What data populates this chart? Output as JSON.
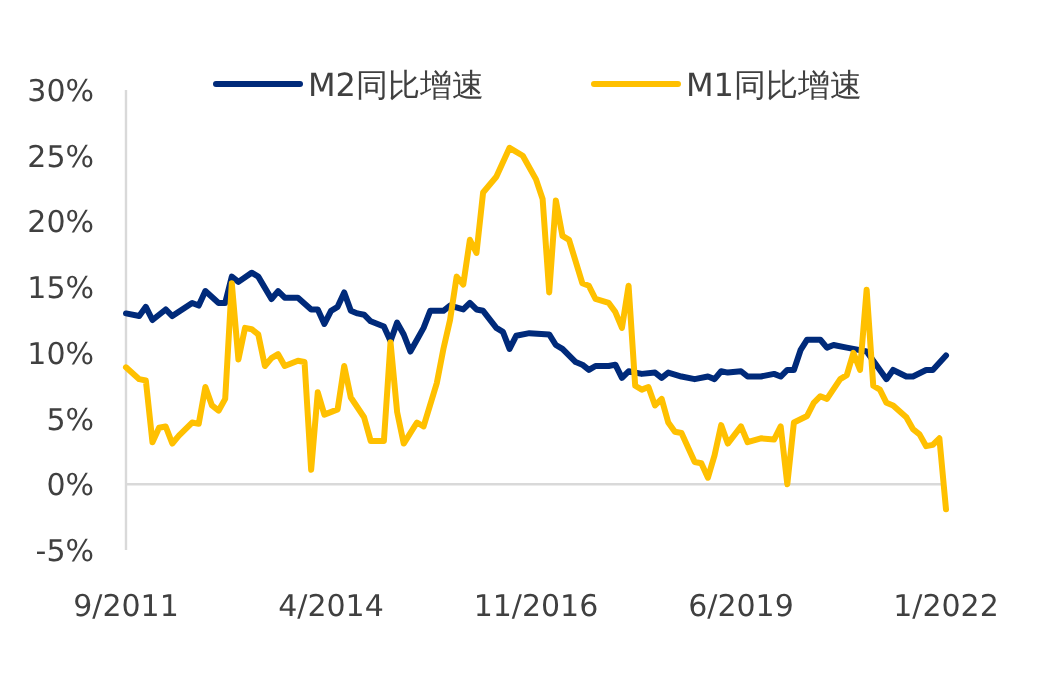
{
  "chart_data": {
    "type": "line",
    "legend": "top",
    "marker": "none",
    "line_style": "solid",
    "ref_lines": [
      {
        "axis": "y",
        "value": 0,
        "color": "#d9d9d9"
      }
    ],
    "xlim": [
      "2011-09",
      "2022-01"
    ],
    "xticks": [
      {
        "value": "2011-09",
        "label": "9/2011"
      },
      {
        "value": "2014-04",
        "label": "4/2014"
      },
      {
        "value": "2016-11",
        "label": "11/2016"
      },
      {
        "value": "2019-06",
        "label": "6/2019"
      },
      {
        "value": "2022-01",
        "label": "1/2022"
      }
    ],
    "ylim": [
      -5,
      30
    ],
    "yticks": [
      {
        "value": -5,
        "label": "-5%"
      },
      {
        "value": 0,
        "label": "0%"
      },
      {
        "value": 5,
        "label": "5%"
      },
      {
        "value": 10,
        "label": "10%"
      },
      {
        "value": 15,
        "label": "15%"
      },
      {
        "value": 20,
        "label": "20%"
      },
      {
        "value": 25,
        "label": "25%"
      },
      {
        "value": 30,
        "label": "30%"
      }
    ],
    "series": [
      {
        "name": "M2同比增速",
        "color": "#002a7a",
        "x": [
          "2011-09",
          "2011-11",
          "2011-12",
          "2012-01",
          "2012-03",
          "2012-04",
          "2012-07",
          "2012-08",
          "2012-09",
          "2012-11",
          "2012-12",
          "2013-01",
          "2013-02",
          "2013-04",
          "2013-05",
          "2013-07",
          "2013-08",
          "2013-09",
          "2013-11",
          "2014-01",
          "2014-02",
          "2014-03",
          "2014-04",
          "2014-05",
          "2014-06",
          "2014-07",
          "2014-08",
          "2014-09",
          "2014-10",
          "2014-12",
          "2015-01",
          "2015-02",
          "2015-03",
          "2015-04",
          "2015-05",
          "2015-06",
          "2015-07",
          "2015-09",
          "2015-10",
          "2015-12",
          "2016-01",
          "2016-02",
          "2016-03",
          "2016-05",
          "2016-06",
          "2016-07",
          "2016-08",
          "2016-10",
          "2017-01",
          "2017-02",
          "2017-03",
          "2017-05",
          "2017-06",
          "2017-07",
          "2017-08",
          "2017-10",
          "2017-11",
          "2017-12",
          "2018-01",
          "2018-03",
          "2018-05",
          "2018-06",
          "2018-07",
          "2018-09",
          "2018-11",
          "2019-01",
          "2019-02",
          "2019-03",
          "2019-04",
          "2019-06",
          "2019-07",
          "2019-09",
          "2019-11",
          "2019-12",
          "2020-01",
          "2020-02",
          "2020-03",
          "2020-04",
          "2020-06",
          "2020-07",
          "2020-08",
          "2020-10",
          "2020-11",
          "2021-01",
          "2021-02",
          "2021-04",
          "2021-05",
          "2021-07",
          "2021-08",
          "2021-10",
          "2021-11",
          "2022-01"
        ],
        "values": [
          13.0,
          12.8,
          13.5,
          12.5,
          13.3,
          12.8,
          13.8,
          13.6,
          14.7,
          13.8,
          13.8,
          15.8,
          15.4,
          16.1,
          15.8,
          14.1,
          14.7,
          14.2,
          14.2,
          13.3,
          13.3,
          12.2,
          13.2,
          13.5,
          14.6,
          13.2,
          13.0,
          12.9,
          12.4,
          12.0,
          10.9,
          12.3,
          11.4,
          10.1,
          11.0,
          11.9,
          13.2,
          13.2,
          13.6,
          13.3,
          13.8,
          13.3,
          13.2,
          11.9,
          11.6,
          10.3,
          11.3,
          11.5,
          11.4,
          10.6,
          10.3,
          9.3,
          9.1,
          8.7,
          9.0,
          9.0,
          9.1,
          8.1,
          8.6,
          8.4,
          8.5,
          8.1,
          8.5,
          8.2,
          8.0,
          8.2,
          8.0,
          8.6,
          8.5,
          8.6,
          8.2,
          8.2,
          8.4,
          8.2,
          8.7,
          8.7,
          10.2,
          11.0,
          11.0,
          10.4,
          10.6,
          10.4,
          10.3,
          10.1,
          9.4,
          8.0,
          8.7,
          8.2,
          8.2,
          8.7,
          8.7,
          9.8
        ]
      },
      {
        "name": "M1同比增速",
        "color": "#ffc000",
        "x": [
          "2011-09",
          "2011-11",
          "2011-12",
          "2012-01",
          "2012-02",
          "2012-03",
          "2012-04",
          "2012-05",
          "2012-07",
          "2012-08",
          "2012-09",
          "2012-10",
          "2012-11",
          "2012-12",
          "2013-01",
          "2013-02",
          "2013-03",
          "2013-04",
          "2013-05",
          "2013-06",
          "2013-07",
          "2013-08",
          "2013-09",
          "2013-11",
          "2013-12",
          "2014-01",
          "2014-02",
          "2014-03",
          "2014-05",
          "2014-06",
          "2014-07",
          "2014-09",
          "2014-10",
          "2014-12",
          "2015-01",
          "2015-02",
          "2015-03",
          "2015-05",
          "2015-06",
          "2015-08",
          "2015-09",
          "2015-10",
          "2015-11",
          "2015-12",
          "2016-01",
          "2016-02",
          "2016-03",
          "2016-05",
          "2016-07",
          "2016-09",
          "2016-11",
          "2016-12",
          "2017-01",
          "2017-02",
          "2017-03",
          "2017-04",
          "2017-06",
          "2017-07",
          "2017-08",
          "2017-10",
          "2017-11",
          "2017-12",
          "2018-01",
          "2018-02",
          "2018-03",
          "2018-04",
          "2018-05",
          "2018-06",
          "2018-07",
          "2018-08",
          "2018-09",
          "2018-11",
          "2018-12",
          "2019-01",
          "2019-02",
          "2019-03",
          "2019-04",
          "2019-06",
          "2019-07",
          "2019-09",
          "2019-11",
          "2019-12",
          "2020-01",
          "2020-02",
          "2020-04",
          "2020-05",
          "2020-06",
          "2020-07",
          "2020-09",
          "2020-10",
          "2020-11",
          "2020-12",
          "2021-01",
          "2021-02",
          "2021-03",
          "2021-04",
          "2021-05",
          "2021-07",
          "2021-08",
          "2021-09",
          "2021-10",
          "2021-11",
          "2021-12",
          "2022-01"
        ],
        "values": [
          8.9,
          8.0,
          7.9,
          3.2,
          4.3,
          4.4,
          3.1,
          3.7,
          4.7,
          4.6,
          7.4,
          6.0,
          5.6,
          6.5,
          15.3,
          9.5,
          11.9,
          11.8,
          11.4,
          9.0,
          9.6,
          9.9,
          9.0,
          9.4,
          9.3,
          1.1,
          7.0,
          5.3,
          5.7,
          9.0,
          6.6,
          5.1,
          3.3,
          3.3,
          10.8,
          5.5,
          3.1,
          4.7,
          4.4,
          7.7,
          10.3,
          12.5,
          15.8,
          15.2,
          18.6,
          17.6,
          22.2,
          23.4,
          25.6,
          25.0,
          23.2,
          21.7,
          14.6,
          21.6,
          18.9,
          18.6,
          15.3,
          15.1,
          14.1,
          13.8,
          13.1,
          11.9,
          15.1,
          7.5,
          7.2,
          7.4,
          6.0,
          6.5,
          4.7,
          4.0,
          3.9,
          1.7,
          1.6,
          0.5,
          2.2,
          4.5,
          3.1,
          4.4,
          3.2,
          3.5,
          3.4,
          4.4,
          0.0,
          4.7,
          5.2,
          6.2,
          6.7,
          6.5,
          8.0,
          8.3,
          10.0,
          8.7,
          14.8,
          7.5,
          7.2,
          6.2,
          6.0,
          5.1,
          4.2,
          3.8,
          2.9,
          3.0,
          3.5,
          -1.9
        ]
      }
    ]
  }
}
